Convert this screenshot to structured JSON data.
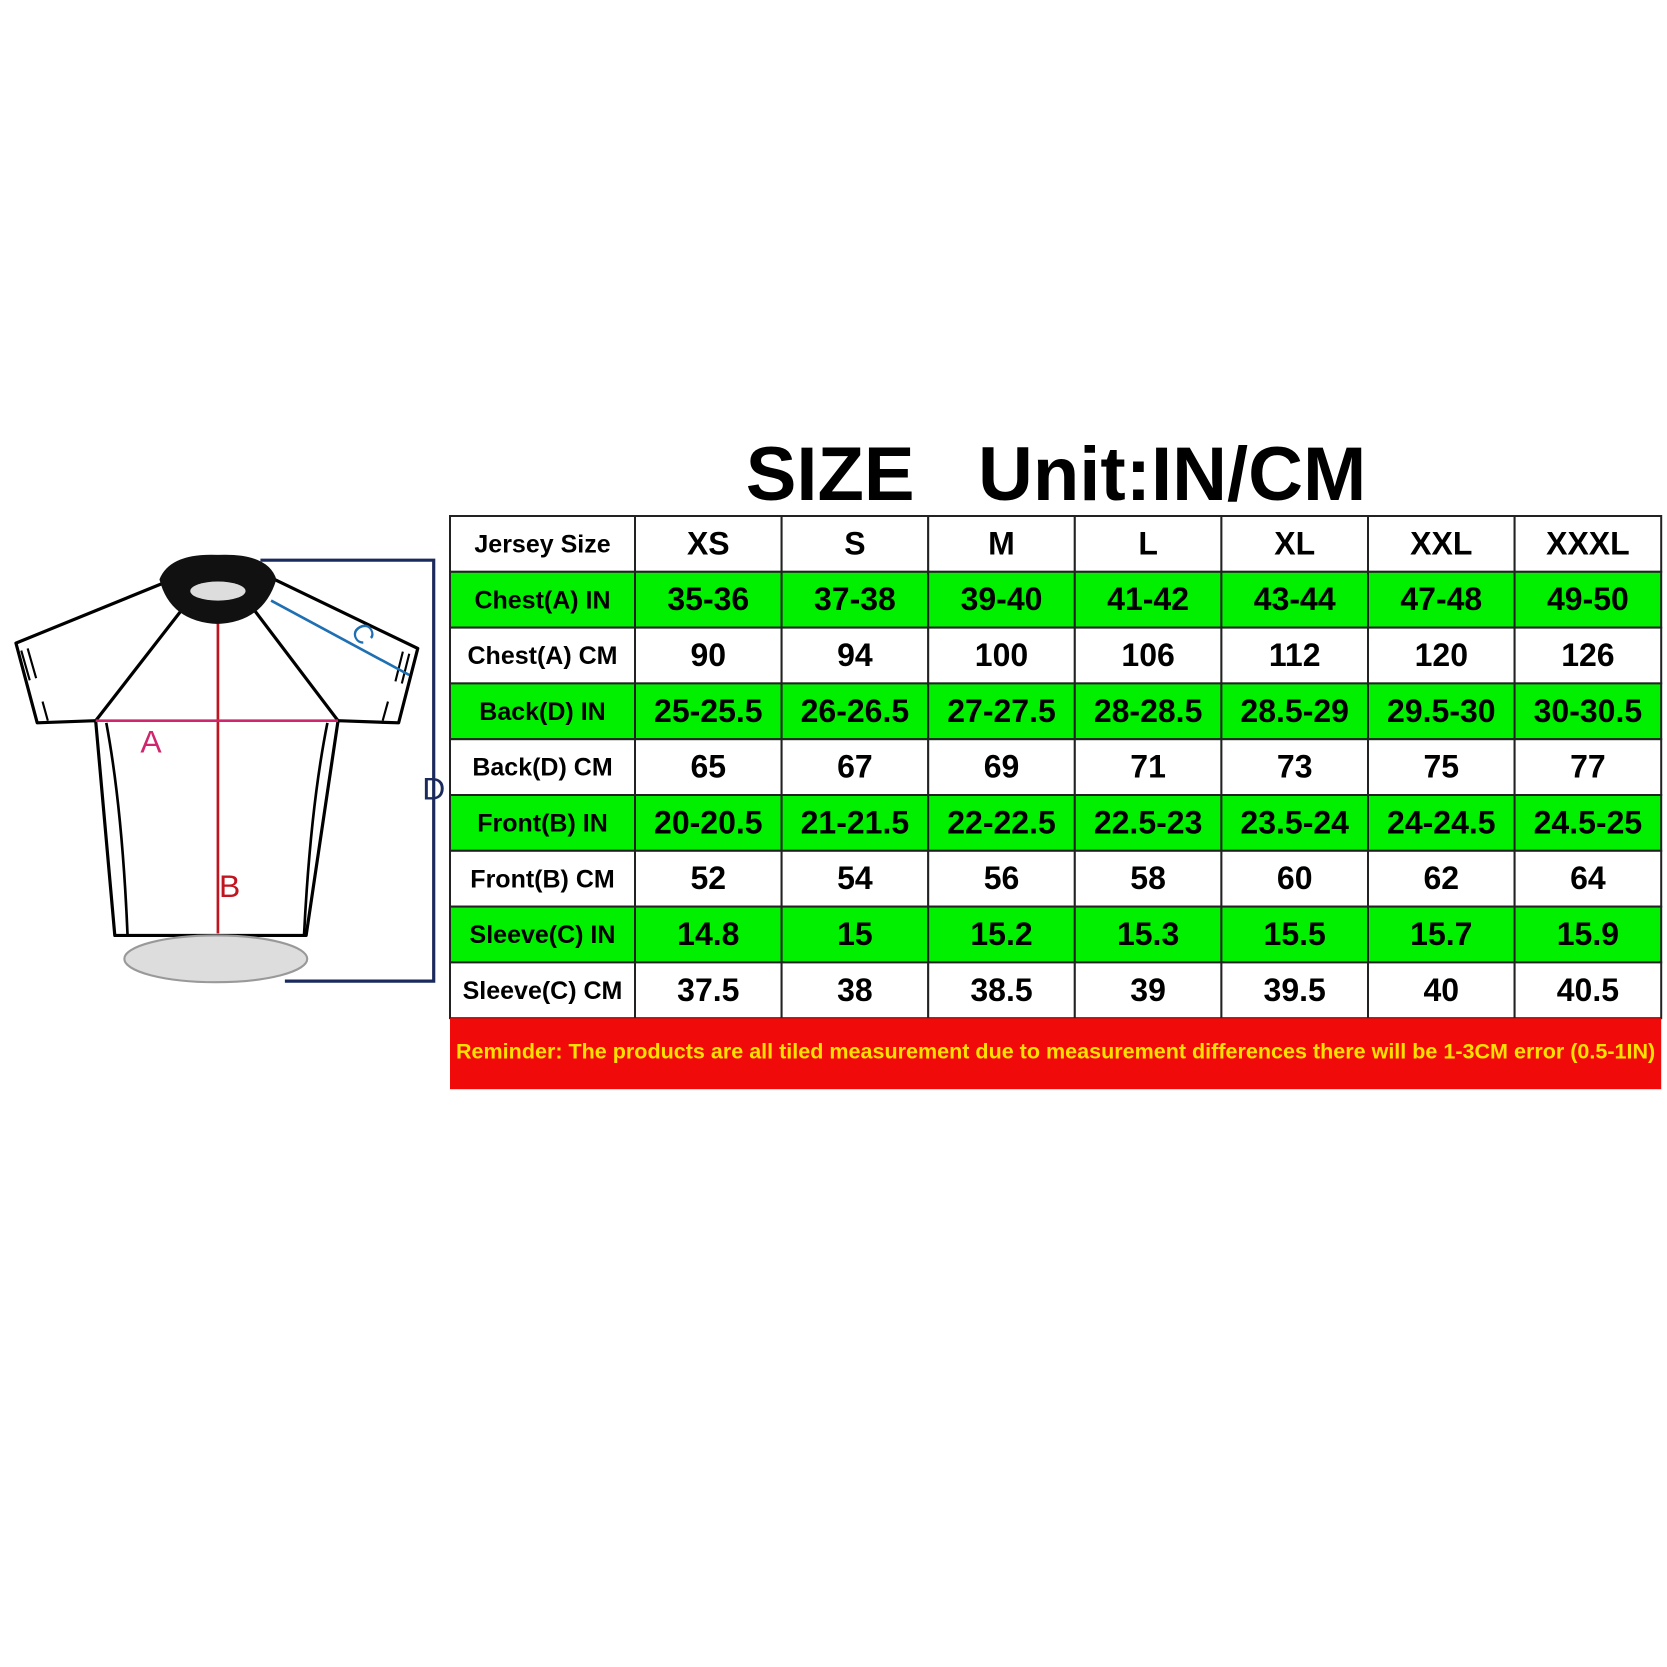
{
  "header": {
    "title": "SIZE   Unit:IN/CM"
  },
  "diagram": {
    "labels": [
      "A",
      "B",
      "C",
      "D"
    ]
  },
  "table": {
    "header": [
      "Jersey Size",
      "XS",
      "S",
      "M",
      "L",
      "XL",
      "XXL",
      "XXXL"
    ],
    "rows": [
      [
        "Chest(A) IN",
        "35-36",
        "37-38",
        "39-40",
        "41-42",
        "43-44",
        "47-48",
        "49-50"
      ],
      [
        "Chest(A) CM",
        "90",
        "94",
        "100",
        "106",
        "112",
        "120",
        "126"
      ],
      [
        "Back(D) IN",
        "25-25.5",
        "26-26.5",
        "27-27.5",
        "28-28.5",
        "28.5-29",
        "29.5-30",
        "30-30.5"
      ],
      [
        "Back(D) CM",
        "65",
        "67",
        "69",
        "71",
        "73",
        "75",
        "77"
      ],
      [
        "Front(B) IN",
        "20-20.5",
        "21-21.5",
        "22-22.5",
        "22.5-23",
        "23.5-24",
        "24-24.5",
        "24.5-25"
      ],
      [
        "Front(B) CM",
        "52",
        "54",
        "56",
        "58",
        "60",
        "62",
        "64"
      ],
      [
        "Sleeve(C) IN",
        "14.8",
        "15",
        "15.2",
        "15.3",
        "15.5",
        "15.7",
        "15.9"
      ],
      [
        "Sleeve(C) CM",
        "37.5",
        "38",
        "38.5",
        "39",
        "39.5",
        "40",
        "40.5"
      ]
    ],
    "reminder": "Reminder: The products are all tiled measurement due to measurement differences there will be 1-3CM error (0.5-1IN)"
  }
}
